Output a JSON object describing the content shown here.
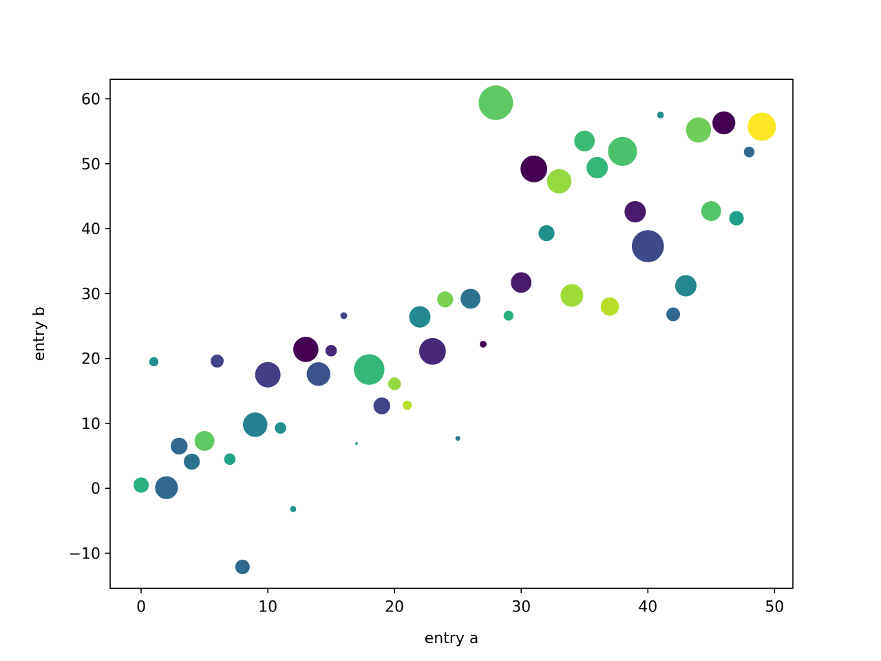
{
  "chart_data": {
    "type": "scatter",
    "xlabel": "entry a",
    "ylabel": "entry b",
    "xlim": [
      -2.45,
      51.45
    ],
    "ylim": [
      -15.4,
      63.0
    ],
    "grid": false,
    "legend": "none",
    "x_ticks": [
      0,
      10,
      20,
      30,
      40,
      50
    ],
    "x_tick_labels": [
      "0",
      "10",
      "20",
      "30",
      "40",
      "50"
    ],
    "y_ticks": [
      -10,
      0,
      10,
      20,
      30,
      40,
      50,
      60
    ],
    "y_tick_labels": [
      "−10",
      "0",
      "10",
      "20",
      "30",
      "40",
      "50",
      "60"
    ],
    "size_encoding": "marker area",
    "color_encoding": "viridis",
    "points": [
      {
        "x": 0,
        "y": 0.5,
        "size": 100,
        "color": "#2ab07f"
      },
      {
        "x": 1,
        "y": 19.5,
        "size": 36,
        "color": "#21918c"
      },
      {
        "x": 2,
        "y": 0.1,
        "size": 225,
        "color": "#31688e"
      },
      {
        "x": 3,
        "y": 6.5,
        "size": 121,
        "color": "#31688e"
      },
      {
        "x": 4,
        "y": 4.1,
        "size": 110,
        "color": "#2c728e"
      },
      {
        "x": 5,
        "y": 7.3,
        "size": 169,
        "color": "#5ec962"
      },
      {
        "x": 6,
        "y": 19.6,
        "size": 73,
        "color": "#414487"
      },
      {
        "x": 7,
        "y": 4.5,
        "size": 56,
        "color": "#20a386"
      },
      {
        "x": 8,
        "y": -12.1,
        "size": 90,
        "color": "#31688e"
      },
      {
        "x": 9,
        "y": 9.8,
        "size": 256,
        "color": "#26828e"
      },
      {
        "x": 10,
        "y": 17.5,
        "size": 278,
        "color": "#433e85"
      },
      {
        "x": 11,
        "y": 9.3,
        "size": 56,
        "color": "#21918c"
      },
      {
        "x": 12,
        "y": -3.2,
        "size": 16,
        "color": "#21918c"
      },
      {
        "x": 13,
        "y": 21.4,
        "size": 272,
        "color": "#440154"
      },
      {
        "x": 14,
        "y": 17.6,
        "size": 240,
        "color": "#3b528b"
      },
      {
        "x": 15,
        "y": 21.2,
        "size": 56,
        "color": "#482878"
      },
      {
        "x": 16,
        "y": 26.6,
        "size": 20,
        "color": "#414487"
      },
      {
        "x": 17,
        "y": 6.9,
        "size": 3,
        "color": "#21918c"
      },
      {
        "x": 18,
        "y": 18.3,
        "size": 400,
        "color": "#35b779"
      },
      {
        "x": 19,
        "y": 12.7,
        "size": 121,
        "color": "#414487"
      },
      {
        "x": 20,
        "y": 16.1,
        "size": 70,
        "color": "#95d840"
      },
      {
        "x": 21,
        "y": 12.8,
        "size": 36,
        "color": "#b8de29"
      },
      {
        "x": 22,
        "y": 26.4,
        "size": 196,
        "color": "#23898e"
      },
      {
        "x": 23,
        "y": 21.1,
        "size": 306,
        "color": "#482878"
      },
      {
        "x": 24,
        "y": 29.1,
        "size": 110,
        "color": "#7ad151"
      },
      {
        "x": 25,
        "y": 7.7,
        "size": 10,
        "color": "#2a788e"
      },
      {
        "x": 26,
        "y": 29.2,
        "size": 169,
        "color": "#2c728e"
      },
      {
        "x": 27,
        "y": 22.2,
        "size": 20,
        "color": "#440154"
      },
      {
        "x": 28,
        "y": 59.4,
        "size": 506,
        "color": "#5ec962"
      },
      {
        "x": 29,
        "y": 26.6,
        "size": 42,
        "color": "#2ab07f"
      },
      {
        "x": 30,
        "y": 31.7,
        "size": 182,
        "color": "#481a6c"
      },
      {
        "x": 31,
        "y": 49.2,
        "size": 306,
        "color": "#440154"
      },
      {
        "x": 32,
        "y": 39.3,
        "size": 110,
        "color": "#21918c"
      },
      {
        "x": 33,
        "y": 47.3,
        "size": 256,
        "color": "#95d840"
      },
      {
        "x": 34,
        "y": 29.7,
        "size": 221,
        "color": "#a0da39"
      },
      {
        "x": 35,
        "y": 53.5,
        "size": 182,
        "color": "#3bbb75"
      },
      {
        "x": 36,
        "y": 49.4,
        "size": 196,
        "color": "#35b779"
      },
      {
        "x": 37,
        "y": 28.0,
        "size": 144,
        "color": "#b8de29"
      },
      {
        "x": 38,
        "y": 51.9,
        "size": 361,
        "color": "#4ac16d"
      },
      {
        "x": 39,
        "y": 42.6,
        "size": 196,
        "color": "#481a6c"
      },
      {
        "x": 40,
        "y": 37.3,
        "size": 441,
        "color": "#3e4989"
      },
      {
        "x": 41,
        "y": 57.5,
        "size": 20,
        "color": "#21918c"
      },
      {
        "x": 42,
        "y": 26.8,
        "size": 81,
        "color": "#31688e"
      },
      {
        "x": 43,
        "y": 31.2,
        "size": 196,
        "color": "#23898e"
      },
      {
        "x": 44,
        "y": 55.2,
        "size": 272,
        "color": "#6ece58"
      },
      {
        "x": 45,
        "y": 42.7,
        "size": 169,
        "color": "#52c569"
      },
      {
        "x": 46,
        "y": 56.3,
        "size": 225,
        "color": "#440154"
      },
      {
        "x": 47,
        "y": 41.6,
        "size": 90,
        "color": "#1f9e89"
      },
      {
        "x": 48,
        "y": 51.8,
        "size": 49,
        "color": "#31688e"
      },
      {
        "x": 49,
        "y": 55.7,
        "size": 342,
        "color": "#fde725"
      }
    ]
  }
}
